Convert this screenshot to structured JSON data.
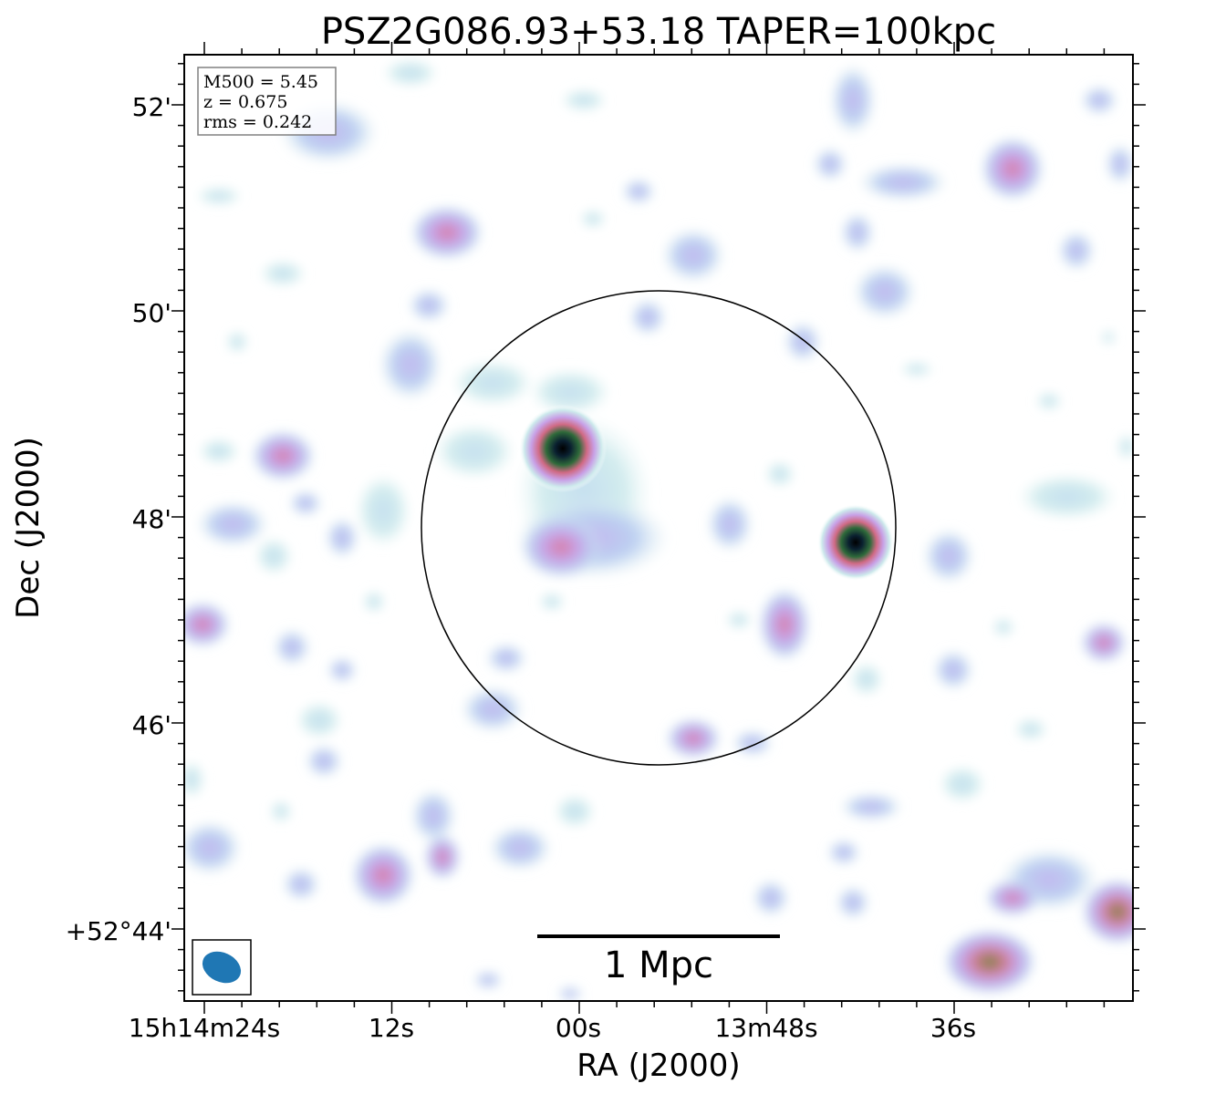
{
  "chart_data": {
    "type": "heatmap",
    "title": "PSZ2G086.93+53.18 TAPER=100kpc",
    "xlabel": "RA (J2000)",
    "ylabel": "Dec (J2000)",
    "x_ticks": [
      "15h14m24s",
      "12s",
      "00s",
      "13m48s",
      "36s"
    ],
    "y_ticks": [
      "52'",
      "50'",
      "48'",
      "46'",
      "+52°44'"
    ],
    "info_box": [
      "M500 = 5.45",
      "z = 0.675",
      "rms = 0.242"
    ],
    "scale_bar_label": "1 Mpc",
    "colormap": [
      "#ffffff",
      "#cdeaec",
      "#b9cdf0",
      "#c6a8ea",
      "#e08aa8",
      "#5f8a3a",
      "#0a2030",
      "#000000"
    ],
    "beam_color": "#1f77b4",
    "circle_color": "#000000"
  }
}
